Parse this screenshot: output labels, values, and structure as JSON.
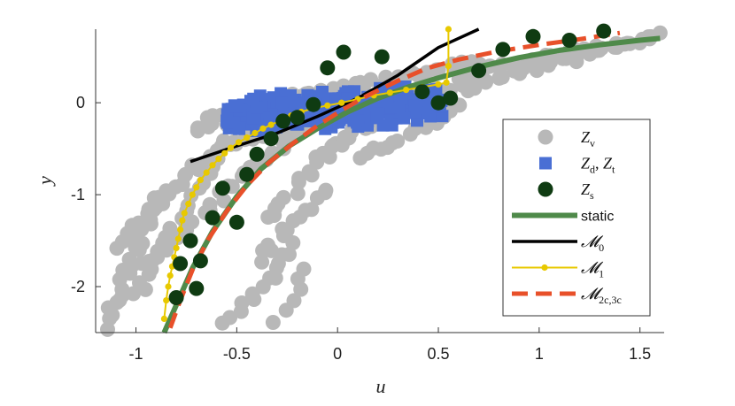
{
  "chart_data": {
    "type": "scatter",
    "title": "",
    "xlabel": "u",
    "ylabel": "y",
    "xlim": [
      -1.2,
      1.62
    ],
    "ylim": [
      -2.5,
      0.8
    ],
    "xticks": [
      -1,
      -0.5,
      0,
      0.5,
      1,
      1.5
    ],
    "xtick_labels": [
      "-1",
      "-0.5",
      "0",
      "0.5",
      "1",
      "1.5"
    ],
    "yticks": [
      -2,
      -1,
      0
    ],
    "ytick_labels": [
      "-2",
      "-1",
      "0"
    ],
    "grid": false,
    "legend_position": "right",
    "colors": {
      "zv": "#b8b8b8",
      "zd": "#4a6fd4",
      "zs": "#0f3b12",
      "static": "#4f8a4a",
      "m0": "#000000",
      "m1": "#e8c900",
      "m2": "#e8502a"
    },
    "legend": [
      {
        "key": "zv",
        "label": "Z_v",
        "main": "Z",
        "sub": "v",
        "marker": "circle"
      },
      {
        "key": "zd",
        "label": "Z_d, Z_t",
        "main": "Z",
        "sub": "d",
        "main2": "Z",
        "sub2": "t",
        "marker": "square"
      },
      {
        "key": "zs",
        "label": "Z_s",
        "main": "Z",
        "sub": "s",
        "marker": "circle"
      },
      {
        "key": "static",
        "label": "static",
        "marker": "line"
      },
      {
        "key": "m0",
        "label": "M_0",
        "main": "𝓜",
        "sub": "0",
        "marker": "line"
      },
      {
        "key": "m1",
        "label": "M_1",
        "main": "𝓜",
        "sub": "1",
        "marker": "line-dot"
      },
      {
        "key": "m2",
        "label": "M_2c,3c",
        "main": "𝓜",
        "sub": "2c,3c",
        "marker": "dash"
      }
    ],
    "series": [
      {
        "key": "static",
        "name": "static",
        "kind": "line",
        "x": [
          -0.86,
          -0.8,
          -0.72,
          -0.62,
          -0.5,
          -0.38,
          -0.24,
          -0.1,
          0.05,
          0.2,
          0.35,
          0.5,
          0.7,
          0.9,
          1.1,
          1.3,
          1.5,
          1.6
        ],
        "y": [
          -2.5,
          -2.2,
          -1.8,
          -1.4,
          -1.02,
          -0.72,
          -0.47,
          -0.28,
          -0.1,
          0.05,
          0.17,
          0.27,
          0.39,
          0.49,
          0.57,
          0.63,
          0.68,
          0.7
        ]
      },
      {
        "key": "m0",
        "name": "M_0",
        "kind": "line",
        "x": [
          -0.73,
          -0.5,
          -0.3,
          -0.1,
          0.1,
          0.3,
          0.5,
          0.7
        ],
        "y": [
          -0.64,
          -0.47,
          -0.33,
          -0.15,
          0.05,
          0.3,
          0.6,
          0.8
        ]
      },
      {
        "key": "m1",
        "name": "M_1",
        "kind": "line-markers",
        "x": [
          -0.86,
          -0.85,
          -0.84,
          -0.83,
          -0.82,
          -0.81,
          -0.8,
          -0.79,
          -0.78,
          -0.77,
          -0.76,
          -0.74,
          -0.72,
          -0.7,
          -0.68,
          -0.65,
          -0.62,
          -0.59,
          -0.56,
          -0.53,
          -0.49,
          -0.45,
          -0.41,
          -0.37,
          -0.33,
          -0.28,
          -0.23,
          -0.18,
          -0.12,
          -0.05,
          0.02,
          0.1,
          0.18,
          0.26,
          0.34,
          0.42,
          0.5,
          0.54,
          0.55,
          0.55
        ],
        "y": [
          -2.35,
          -2.15,
          -2.0,
          -1.88,
          -1.78,
          -1.68,
          -1.58,
          -1.48,
          -1.38,
          -1.28,
          -1.2,
          -1.1,
          -1.0,
          -0.92,
          -0.84,
          -0.76,
          -0.68,
          -0.61,
          -0.55,
          -0.49,
          -0.43,
          -0.38,
          -0.33,
          -0.28,
          -0.24,
          -0.19,
          -0.14,
          -0.1,
          -0.06,
          -0.03,
          0.0,
          0.04,
          0.08,
          0.11,
          0.14,
          0.17,
          0.2,
          0.22,
          0.4,
          0.8
        ]
      },
      {
        "key": "m2",
        "name": "M_2c,3c",
        "kind": "dash",
        "x": [
          -0.83,
          -0.78,
          -0.72,
          -0.64,
          -0.55,
          -0.45,
          -0.34,
          -0.22,
          -0.1,
          0.03,
          0.15,
          0.3,
          0.45,
          0.6,
          0.8,
          1.0,
          1.2,
          1.4
        ],
        "y": [
          -2.45,
          -2.15,
          -1.82,
          -1.48,
          -1.18,
          -0.9,
          -0.65,
          -0.44,
          -0.25,
          -0.07,
          0.08,
          0.24,
          0.38,
          0.47,
          0.56,
          0.63,
          0.69,
          0.76
        ]
      }
    ],
    "scatter_zs": {
      "x": [
        -0.8,
        -0.78,
        -0.73,
        -0.7,
        -0.68,
        -0.62,
        -0.57,
        -0.5,
        -0.45,
        -0.4,
        -0.33,
        -0.27,
        -0.2,
        -0.12,
        -0.05,
        0.03,
        0.22,
        0.42,
        0.5,
        0.56,
        0.7,
        0.82,
        0.97,
        1.15,
        1.32
      ],
      "y": [
        -2.12,
        -1.75,
        -1.5,
        -2.02,
        -1.72,
        -1.25,
        -0.93,
        -1.3,
        -0.78,
        -0.56,
        -0.39,
        -0.2,
        -0.16,
        -0.02,
        0.38,
        0.55,
        0.5,
        0.12,
        0.0,
        0.05,
        0.35,
        0.58,
        0.72,
        0.68,
        0.78
      ]
    },
    "zv_segments": [
      {
        "x0": -1.15,
        "y0": -2.45,
        "x1": -0.9,
        "y1": -1.0,
        "n": 24
      },
      {
        "x0": -1.1,
        "y0": -1.55,
        "x1": -0.65,
        "y1": -0.6,
        "n": 22
      },
      {
        "x0": -1.0,
        "y0": -2.1,
        "x1": -0.55,
        "y1": -0.4,
        "n": 26
      },
      {
        "x0": -0.95,
        "y0": -1.75,
        "x1": -0.2,
        "y1": -0.3,
        "n": 28
      },
      {
        "x0": -0.65,
        "y0": -0.15,
        "x1": 0.7,
        "y1": 0.45,
        "n": 40
      },
      {
        "x0": -0.55,
        "y0": -0.45,
        "x1": 0.55,
        "y1": 0.15,
        "n": 40
      },
      {
        "x0": -0.35,
        "y0": -1.25,
        "x1": 0.1,
        "y1": -0.25,
        "n": 18
      },
      {
        "x0": -0.4,
        "y0": -1.7,
        "x1": -0.05,
        "y1": -0.95,
        "n": 14
      },
      {
        "x0": -0.55,
        "y0": -2.4,
        "x1": -0.2,
        "y1": -1.55,
        "n": 14
      },
      {
        "x0": -0.3,
        "y0": -2.35,
        "x1": -0.15,
        "y1": -1.8,
        "n": 6
      },
      {
        "x0": 0.1,
        "y0": -0.6,
        "x1": 0.6,
        "y1": -0.05,
        "n": 16
      },
      {
        "x0": 0.6,
        "y0": 0.3,
        "x1": 1.6,
        "y1": 0.72,
        "n": 45
      },
      {
        "x0": 0.5,
        "y0": 0.1,
        "x1": 1.2,
        "y1": 0.5,
        "n": 24
      },
      {
        "x0": -0.7,
        "y0": -0.3,
        "x1": -0.1,
        "y1": 0.15,
        "n": 20
      },
      {
        "x0": -0.12,
        "y0": -0.58,
        "x1": 0.15,
        "y1": -0.25,
        "n": 8
      }
    ],
    "zd_box": {
      "x": [
        -0.55,
        0.52
      ],
      "y": [
        -0.3,
        0.2
      ],
      "n": 320
    }
  }
}
